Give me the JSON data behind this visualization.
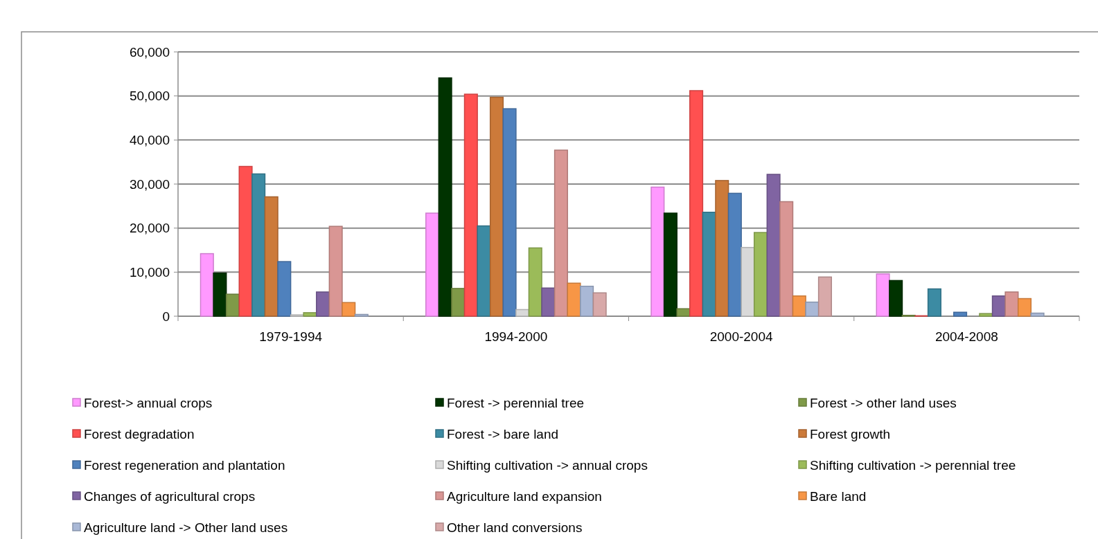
{
  "chart_data": {
    "type": "bar",
    "categories": [
      "1979-1994",
      "1994-2000",
      "2000-2004",
      "2004-2008"
    ],
    "series": [
      {
        "name": "Forest-> annual crops",
        "color": "#ff99ff",
        "values": [
          14200,
          23400,
          29300,
          9600
        ]
      },
      {
        "name": "Forest -> perennial tree",
        "color": "#003300",
        "values": [
          9800,
          54100,
          23400,
          8100
        ]
      },
      {
        "name": "Forest -> other land uses",
        "color": "#7f9a48",
        "values": [
          5000,
          6300,
          1700,
          200
        ]
      },
      {
        "name": "Forest degradation",
        "color": "#ff5050",
        "values": [
          34000,
          50400,
          51200,
          100
        ]
      },
      {
        "name": "Forest -> bare land",
        "color": "#3c8ba3",
        "values": [
          32300,
          20500,
          23600,
          6200
        ]
      },
      {
        "name": "Forest growth",
        "color": "#cc7a3a",
        "values": [
          27100,
          49700,
          30800,
          0
        ]
      },
      {
        "name": "Forest regeneration and plantation",
        "color": "#4f81bd",
        "values": [
          12400,
          47100,
          27900,
          900
        ]
      },
      {
        "name": "Shifting cultivation -> annual crops",
        "color": "#d9d9d9",
        "values": [
          300,
          1500,
          15600,
          0
        ]
      },
      {
        "name": "Shifting cultivation -> perennial tree",
        "color": "#9bbb59",
        "values": [
          800,
          15500,
          19000,
          600
        ]
      },
      {
        "name": "Changes of agricultural crops",
        "color": "#8064a2",
        "values": [
          5500,
          6400,
          32200,
          4600
        ]
      },
      {
        "name": "Agriculture land expansion",
        "color": "#d99694",
        "values": [
          20400,
          37700,
          26000,
          5500
        ]
      },
      {
        "name": "Bare land",
        "color": "#f79646",
        "values": [
          3100,
          7500,
          4600,
          4000
        ]
      },
      {
        "name": "Agriculture land -> Other land uses",
        "color": "#a9b8d6",
        "values": [
          400,
          6800,
          3200,
          700
        ]
      },
      {
        "name": "Other land conversions",
        "color": "#d8a9a9",
        "values": [
          0,
          5300,
          8900,
          0
        ]
      }
    ],
    "ylim": [
      0,
      60000
    ],
    "yticks": [
      0,
      {
        "value": 10000,
        "label": "10,000"
      },
      {
        "value": 20000,
        "label": "20,000"
      },
      {
        "value": 30000,
        "label": "30,000"
      },
      {
        "value": 40000,
        "label": "40,000"
      },
      {
        "value": 50000,
        "label": "50,000"
      },
      {
        "value": 60000,
        "label": "60,000"
      }
    ],
    "grid": "y",
    "legend": "bottom"
  }
}
